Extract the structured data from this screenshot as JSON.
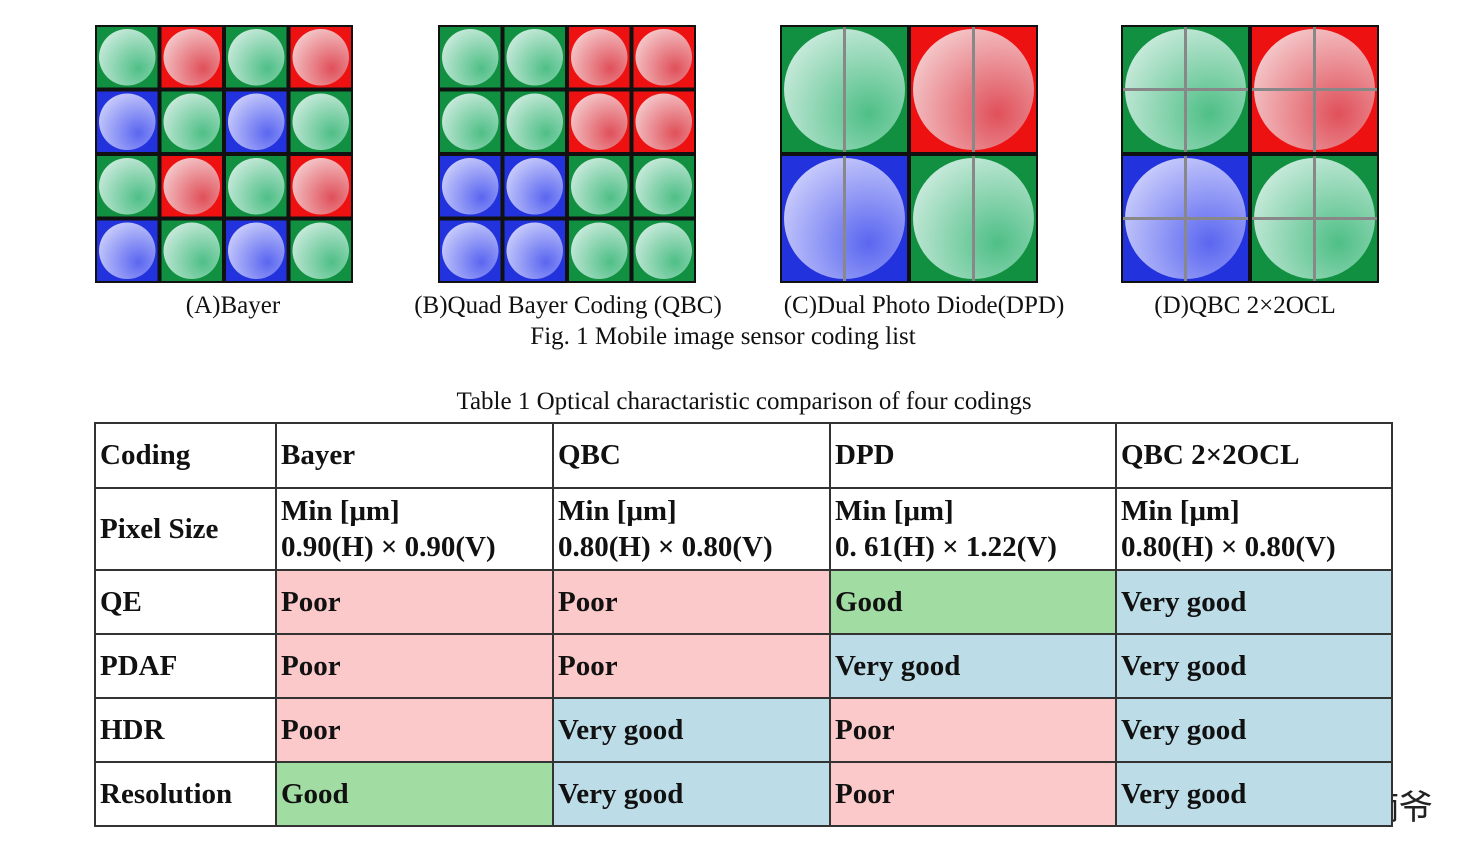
{
  "figure": {
    "panels": [
      "(A)Bayer",
      "(B)Quad Bayer Coding (QBC)",
      "(C)Dual Photo Diode(DPD)",
      "(D)QBC 2×2OCL"
    ],
    "caption": "Fig. 1 Mobile image sensor coding list"
  },
  "table": {
    "caption": "Table 1 Optical charactaristic comparison of four codings",
    "rows": [
      [
        "Coding",
        "Bayer",
        "QBC",
        "DPD",
        "QBC 2×2OCL"
      ],
      [
        "Pixel Size",
        [
          "Min [μm]",
          "0.90(H) × 0.90(V)"
        ],
        [
          "Min [μm]",
          "0.80(H) × 0.80(V)"
        ],
        [
          "Min [μm]",
          "0. 61(H) × 1.22(V)"
        ],
        [
          "Min [μm]",
          "0.80(H) × 0.80(V)"
        ]
      ],
      [
        "QE",
        "Poor",
        "Poor",
        "Good",
        "Very good"
      ],
      [
        "PDAF",
        "Poor",
        "Poor",
        "Very good",
        "Very good"
      ],
      [
        "HDR",
        "Poor",
        "Very good",
        "Poor",
        "Very good"
      ],
      [
        "Resolution",
        "Good",
        "Very good",
        "Poor",
        "Very good"
      ]
    ]
  },
  "watermark": "头条 @楠爷"
}
